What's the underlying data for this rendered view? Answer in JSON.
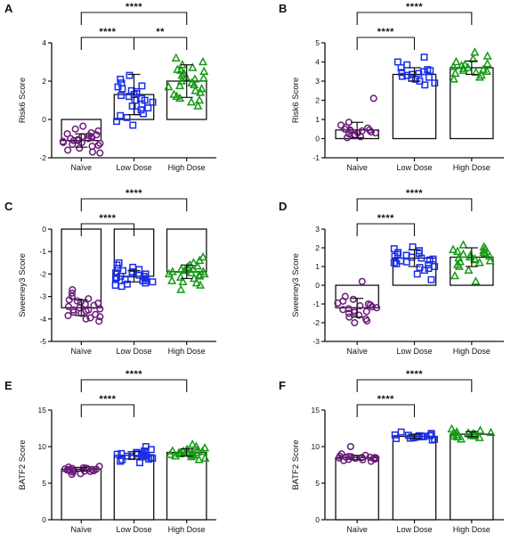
{
  "chart_data": [
    {
      "type": "bar",
      "panel": "A",
      "ylabel": "Risk6 Score",
      "ylim": [
        -2,
        4
      ],
      "yticks": [
        -2,
        0,
        2,
        4
      ],
      "categories": [
        "Naïve",
        "Low Dose",
        "High Dose"
      ],
      "bar_means": [
        -1.1,
        1.3,
        2.0
      ],
      "error_sd": [
        0.35,
        1.05,
        0.85
      ],
      "points": [
        [
          -0.35,
          -0.5,
          -0.6,
          -0.7,
          -0.75,
          -0.8,
          -0.85,
          -0.9,
          -0.9,
          -0.95,
          -1.0,
          -1.0,
          -1.05,
          -1.1,
          -1.1,
          -1.15,
          -1.2,
          -1.2,
          -1.25,
          -1.3,
          -1.35,
          -1.4,
          -1.5,
          -1.6,
          -1.7,
          -1.75
        ],
        [
          2.3,
          2.1,
          1.9,
          1.75,
          1.6,
          1.5,
          1.45,
          1.35,
          1.3,
          1.2,
          1.1,
          1.0,
          1.0,
          0.9,
          0.8,
          0.7,
          0.6,
          0.5,
          0.4,
          0.3,
          0.2,
          0.1,
          -0.1,
          -0.3,
          1.7,
          1.25
        ],
        [
          3.2,
          3.0,
          2.85,
          2.7,
          2.6,
          2.5,
          2.4,
          2.3,
          2.2,
          2.15,
          2.1,
          2.0,
          1.9,
          1.8,
          1.7,
          1.6,
          1.5,
          1.4,
          1.3,
          1.2,
          1.1,
          1.0,
          0.9,
          0.7,
          2.55,
          1.75
        ]
      ],
      "comparisons": [
        {
          "from": 0,
          "to": 2,
          "label": "****"
        },
        {
          "from": 0,
          "to": 1,
          "label": "****"
        },
        {
          "from": 1,
          "to": 2,
          "label": "**"
        }
      ]
    },
    {
      "type": "bar",
      "panel": "B",
      "ylabel": "Risk6 Score",
      "ylim": [
        -1,
        5
      ],
      "yticks": [
        -1,
        0,
        1,
        2,
        3,
        4,
        5
      ],
      "categories": [
        "Naïve",
        "Low Dose",
        "High Dose"
      ],
      "bar_means": [
        0.45,
        3.35,
        3.7
      ],
      "error_sd": [
        0.4,
        0.35,
        0.35
      ],
      "points": [
        [
          2.1,
          0.85,
          0.7,
          0.6,
          0.55,
          0.5,
          0.45,
          0.45,
          0.4,
          0.4,
          0.35,
          0.3,
          0.3,
          0.25,
          0.2,
          0.15,
          0.1,
          0.05
        ],
        [
          4.25,
          4.0,
          3.85,
          3.7,
          3.6,
          3.5,
          3.45,
          3.4,
          3.3,
          3.25,
          3.2,
          3.1,
          3.0,
          2.9,
          2.8,
          3.55,
          3.35,
          3.15
        ],
        [
          4.5,
          4.3,
          4.15,
          4.0,
          3.9,
          3.8,
          3.75,
          3.7,
          3.65,
          3.6,
          3.5,
          3.4,
          3.3,
          3.2,
          3.1,
          3.85,
          3.55,
          3.45
        ]
      ],
      "comparisons": [
        {
          "from": 0,
          "to": 2,
          "label": "****"
        },
        {
          "from": 0,
          "to": 1,
          "label": "****"
        }
      ]
    },
    {
      "type": "bar",
      "panel": "C",
      "ylabel": "Sweeney3 Score",
      "ylim": [
        -5,
        0
      ],
      "yticks": [
        -5,
        -4,
        -3,
        -2,
        -1,
        0
      ],
      "categories": [
        "Naïve",
        "Low Dose",
        "High Dose"
      ],
      "bar_means": [
        -3.5,
        -2.1,
        -1.9
      ],
      "error_sd": [
        0.35,
        0.25,
        0.3
      ],
      "points": [
        [
          -2.7,
          -2.85,
          -3.0,
          -3.1,
          -3.2,
          -3.25,
          -3.3,
          -3.4,
          -3.45,
          -3.5,
          -3.55,
          -3.6,
          -3.65,
          -3.7,
          -3.75,
          -3.8,
          -3.85,
          -3.9,
          -4.0,
          -4.1,
          -3.35,
          -3.6,
          -3.15,
          -3.95
        ],
        [
          -1.5,
          -1.6,
          -1.7,
          -1.8,
          -1.9,
          -1.95,
          -2.0,
          -2.05,
          -2.1,
          -2.15,
          -2.2,
          -2.25,
          -2.3,
          -2.35,
          -2.4,
          -2.45,
          -2.5,
          -2.55,
          -1.85,
          -2.0,
          -2.2,
          -2.3,
          -2.1,
          -1.75
        ],
        [
          -1.25,
          -1.4,
          -1.5,
          -1.6,
          -1.7,
          -1.75,
          -1.8,
          -1.85,
          -1.9,
          -1.95,
          -2.0,
          -2.05,
          -2.1,
          -2.2,
          -2.3,
          -2.4,
          -2.5,
          -2.7,
          -1.65,
          -1.9,
          -2.0,
          -2.15,
          -1.8,
          -2.35
        ]
      ],
      "comparisons": [
        {
          "from": 0,
          "to": 2,
          "label": "****"
        },
        {
          "from": 0,
          "to": 1,
          "label": "****"
        }
      ]
    },
    {
      "type": "bar",
      "panel": "D",
      "ylabel": "Sweeney3 Score",
      "ylim": [
        -3,
        3
      ],
      "yticks": [
        -3,
        -2,
        -1,
        0,
        1,
        2,
        3
      ],
      "categories": [
        "Naïve",
        "Low Dose",
        "High Dose"
      ],
      "bar_means": [
        -1.2,
        1.45,
        1.5
      ],
      "error_sd": [
        0.5,
        0.45,
        0.5
      ],
      "points": [
        [
          0.2,
          -0.6,
          -0.75,
          -0.85,
          -0.95,
          -1.0,
          -1.1,
          -1.15,
          -1.2,
          -1.25,
          -1.3,
          -1.35,
          -1.4,
          -1.5,
          -1.6,
          -1.7,
          -1.8,
          -1.9,
          -2.0,
          -1.05,
          -1.45
        ],
        [
          2.05,
          1.95,
          1.85,
          1.75,
          1.65,
          1.6,
          1.5,
          1.45,
          1.4,
          1.35,
          1.3,
          1.2,
          1.1,
          1.0,
          0.9,
          0.8,
          0.6,
          0.3,
          1.55,
          1.25,
          1.7,
          1.15,
          0.95
        ],
        [
          2.15,
          2.05,
          1.95,
          1.9,
          1.8,
          1.7,
          1.65,
          1.6,
          1.55,
          1.5,
          1.45,
          1.4,
          1.3,
          1.2,
          1.1,
          1.0,
          0.8,
          0.5,
          0.2,
          1.85,
          1.75,
          1.35,
          1.25
        ]
      ],
      "comparisons": [
        {
          "from": 0,
          "to": 2,
          "label": "****"
        },
        {
          "from": 0,
          "to": 1,
          "label": "****"
        }
      ]
    },
    {
      "type": "bar",
      "panel": "E",
      "ylabel": "BATF2 Score",
      "ylim": [
        0,
        15
      ],
      "yticks": [
        0,
        5,
        10,
        15
      ],
      "categories": [
        "Naïve",
        "Low Dose",
        "High Dose"
      ],
      "bar_means": [
        6.9,
        8.8,
        9.2
      ],
      "error_sd": [
        0.25,
        0.5,
        0.5
      ],
      "points": [
        [
          7.3,
          7.2,
          7.1,
          7.05,
          7.0,
          6.95,
          6.9,
          6.9,
          6.85,
          6.8,
          6.8,
          6.75,
          6.7,
          6.7,
          6.65,
          6.6,
          6.5,
          6.3,
          6.2,
          6.95,
          7.0,
          6.85
        ],
        [
          10.0,
          9.6,
          9.4,
          9.2,
          9.1,
          9.0,
          8.95,
          8.9,
          8.85,
          8.8,
          8.7,
          8.6,
          8.5,
          8.4,
          8.3,
          8.2,
          8.0,
          7.8,
          8.75,
          9.05,
          8.65
        ],
        [
          10.3,
          10.0,
          9.8,
          9.6,
          9.5,
          9.4,
          9.3,
          9.25,
          9.2,
          9.15,
          9.1,
          9.0,
          8.9,
          8.8,
          8.7,
          8.6,
          8.4,
          8.2,
          9.35,
          9.05,
          8.95
        ]
      ],
      "comparisons": [
        {
          "from": 0,
          "to": 2,
          "label": "****"
        },
        {
          "from": 0,
          "to": 1,
          "label": "****"
        }
      ]
    },
    {
      "type": "bar",
      "panel": "F",
      "ylabel": "BATF2 Score",
      "ylim": [
        0,
        15
      ],
      "yticks": [
        0,
        5,
        10,
        15
      ],
      "categories": [
        "Naïve",
        "Low Dose",
        "High Dose"
      ],
      "bar_means": [
        8.5,
        11.4,
        11.7
      ],
      "error_sd": [
        0.3,
        0.3,
        0.35
      ],
      "points": [
        [
          10.0,
          9.0,
          8.8,
          8.7,
          8.65,
          8.6,
          8.55,
          8.5,
          8.5,
          8.45,
          8.4,
          8.35,
          8.3,
          8.25,
          8.2,
          8.1,
          8.0,
          8.55,
          8.45
        ],
        [
          12.0,
          11.8,
          11.7,
          11.6,
          11.55,
          11.5,
          11.45,
          11.4,
          11.35,
          11.3,
          11.25,
          11.2,
          11.1,
          11.0,
          10.9,
          11.5,
          11.35,
          11.15
        ],
        [
          12.4,
          12.2,
          12.0,
          11.9,
          11.85,
          11.8,
          11.75,
          11.7,
          11.65,
          11.6,
          11.5,
          11.4,
          11.3,
          11.2,
          11.0,
          11.9,
          11.55,
          11.45
        ]
      ],
      "comparisons": [
        {
          "from": 0,
          "to": 2,
          "label": "****"
        },
        {
          "from": 0,
          "to": 1,
          "label": "****"
        }
      ]
    }
  ],
  "style": {
    "group_colors": [
      "#6a1b7a",
      "#1a2ee8",
      "#159a15"
    ],
    "group_markers": [
      "circle",
      "square",
      "triangle"
    ],
    "axis_color": "#111111",
    "bar_fill": "#ffffff"
  }
}
